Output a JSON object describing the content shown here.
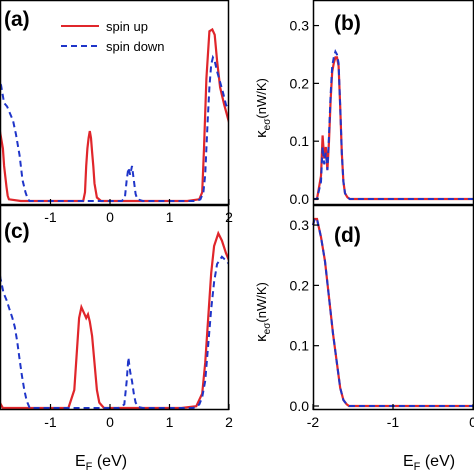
{
  "colors": {
    "spin_up": "#e0262b",
    "spin_down": "#1f35c9",
    "axis": "#000000"
  },
  "legend": {
    "spin_up": "spin up",
    "spin_down": "spin down"
  },
  "x_axis_label": {
    "main": "E",
    "sub": "F",
    "unit": " (eV)"
  },
  "y_axis_label": {
    "main": "κ",
    "sub": "eσ",
    "unit": "(nW/K)"
  },
  "chart_data": [
    {
      "panel": "(a)",
      "type": "line",
      "xlim": [
        -2,
        2
      ],
      "ylim": [
        0,
        1
      ],
      "xticks": [
        -1,
        0,
        1,
        2
      ],
      "yticks": [],
      "series": [
        {
          "name": "spin up",
          "style": "solid",
          "x": [
            -2.0,
            -1.95,
            -1.9,
            -1.85,
            -1.8,
            -1.78,
            -1.74,
            -1.72,
            -1.7,
            -1.5,
            -0.6,
            -0.45,
            -0.42,
            -0.4,
            -0.38,
            -0.36,
            -0.34,
            -0.32,
            -0.3,
            -0.28,
            -0.26,
            -0.22,
            -0.15,
            0.5,
            1.3,
            1.5,
            1.55,
            1.58,
            1.62,
            1.67,
            1.72,
            1.76,
            1.8,
            1.85,
            1.92,
            2.0
          ],
          "y": [
            0.48,
            0.46,
            0.45,
            0.4,
            0.3,
            0.2,
            0.08,
            0.03,
            0.01,
            0.0,
            0.0,
            0.0,
            0.05,
            0.2,
            0.3,
            0.36,
            0.4,
            0.36,
            0.28,
            0.2,
            0.1,
            0.02,
            0.0,
            0.0,
            0.0,
            0.01,
            0.05,
            0.3,
            0.7,
            0.97,
            0.98,
            0.95,
            0.8,
            0.65,
            0.55,
            0.45
          ]
        },
        {
          "name": "spin down",
          "style": "dashed",
          "x": [
            -2.0,
            -1.97,
            -1.92,
            -1.88,
            -1.83,
            -1.78,
            -1.73,
            -1.68,
            -1.63,
            -1.58,
            -1.52,
            -1.47,
            -1.42,
            -1.38,
            -1.35,
            0.1,
            0.2,
            0.25,
            0.28,
            0.31,
            0.34,
            0.37,
            0.4,
            0.43,
            0.46,
            0.55,
            1.45,
            1.52,
            1.57,
            1.6,
            1.62,
            1.64,
            1.67,
            1.7,
            1.73,
            1.76,
            1.8,
            1.85,
            1.9,
            1.95,
            2.0
          ],
          "y": [
            0.55,
            0.58,
            0.68,
            0.72,
            0.66,
            0.56,
            0.54,
            0.5,
            0.46,
            0.38,
            0.26,
            0.12,
            0.05,
            0.01,
            0.0,
            0.0,
            0.0,
            0.02,
            0.12,
            0.19,
            0.15,
            0.2,
            0.12,
            0.04,
            0.01,
            0.0,
            0.0,
            0.01,
            0.05,
            0.15,
            0.3,
            0.45,
            0.65,
            0.78,
            0.82,
            0.8,
            0.74,
            0.68,
            0.62,
            0.55,
            0.52
          ]
        }
      ]
    },
    {
      "panel": "(b)",
      "type": "line",
      "xlim": [
        -2,
        1
      ],
      "ylim": [
        0,
        0.32
      ],
      "xticks": [],
      "yticks": [
        0.0,
        0.1,
        0.2,
        0.3
      ],
      "series": [
        {
          "name": "spin up",
          "style": "solid",
          "x": [
            -2.0,
            -1.95,
            -1.9,
            -1.88,
            -1.86,
            -1.84,
            -1.82,
            -1.8,
            -1.78,
            -1.76,
            -1.74,
            -1.72,
            -1.7,
            -1.68,
            -1.66,
            -1.64,
            -1.62,
            -1.6,
            -1.57,
            -1.54,
            -1.5,
            -1.45,
            1.0
          ],
          "y": [
            0.0,
            0.0,
            0.04,
            0.11,
            0.07,
            0.09,
            0.05,
            0.1,
            0.17,
            0.22,
            0.235,
            0.245,
            0.245,
            0.23,
            0.16,
            0.08,
            0.03,
            0.01,
            0.003,
            0.0,
            0.0,
            0.0,
            0.0
          ]
        },
        {
          "name": "spin down",
          "style": "dashed",
          "x": [
            -2.0,
            -1.95,
            -1.9,
            -1.88,
            -1.86,
            -1.84,
            -1.82,
            -1.8,
            -1.78,
            -1.76,
            -1.74,
            -1.72,
            -1.7,
            -1.68,
            -1.66,
            -1.64,
            -1.62,
            -1.6,
            -1.57,
            -1.54,
            -1.5,
            -1.45,
            1.0
          ],
          "y": [
            0.0,
            0.0,
            0.03,
            0.09,
            0.06,
            0.08,
            0.05,
            0.11,
            0.18,
            0.23,
            0.245,
            0.255,
            0.25,
            0.235,
            0.16,
            0.08,
            0.03,
            0.01,
            0.003,
            0.0,
            0.0,
            0.0,
            0.0
          ]
        }
      ]
    },
    {
      "panel": "(c)",
      "type": "line",
      "xlim": [
        -2,
        2
      ],
      "ylim": [
        0,
        1
      ],
      "xticks": [
        -1,
        0,
        1,
        2
      ],
      "yticks": [],
      "series": [
        {
          "name": "spin up",
          "style": "solid",
          "x": [
            -2.0,
            -1.95,
            -1.9,
            -1.88,
            -1.85,
            -1.8,
            -1.5,
            -0.7,
            -0.6,
            -0.56,
            -0.52,
            -0.48,
            -0.44,
            -0.4,
            -0.37,
            -0.34,
            -0.3,
            -0.26,
            -0.22,
            -0.18,
            -0.1,
            1.2,
            1.45,
            1.55,
            1.6,
            1.65,
            1.7,
            1.75,
            1.82,
            1.88,
            1.95,
            2.0
          ],
          "y": [
            0.44,
            0.42,
            0.3,
            0.15,
            0.03,
            0.0,
            0.0,
            0.0,
            0.1,
            0.3,
            0.5,
            0.56,
            0.53,
            0.5,
            0.52,
            0.48,
            0.4,
            0.25,
            0.1,
            0.03,
            0.0,
            0.0,
            0.01,
            0.08,
            0.25,
            0.5,
            0.75,
            0.9,
            0.97,
            0.93,
            0.86,
            0.82
          ]
        },
        {
          "name": "spin down",
          "style": "dashed",
          "x": [
            -2.0,
            -1.96,
            -1.92,
            -1.88,
            -1.84,
            -1.79,
            -1.74,
            -1.69,
            -1.64,
            -1.6,
            -1.56,
            -1.52,
            -1.48,
            -1.44,
            -1.4,
            -1.35,
            0.15,
            0.24,
            0.28,
            0.31,
            0.34,
            0.37,
            0.4,
            0.43,
            0.48,
            0.55,
            1.4,
            1.5,
            1.55,
            1.6,
            1.65,
            1.7,
            1.75,
            1.8,
            1.88,
            1.95,
            2.0
          ],
          "y": [
            0.95,
            0.9,
            0.82,
            0.8,
            0.72,
            0.64,
            0.6,
            0.55,
            0.5,
            0.45,
            0.37,
            0.27,
            0.18,
            0.1,
            0.04,
            0.0,
            0.0,
            0.02,
            0.15,
            0.28,
            0.2,
            0.15,
            0.08,
            0.03,
            0.005,
            0.0,
            0.0,
            0.02,
            0.06,
            0.15,
            0.35,
            0.55,
            0.7,
            0.8,
            0.84,
            0.82,
            0.8
          ]
        }
      ]
    },
    {
      "panel": "(d)",
      "type": "line",
      "xlim": [
        -2,
        1
      ],
      "ylim": [
        0,
        0.32
      ],
      "xticks": [
        -2,
        -1,
        0
      ],
      "yticks": [
        0.0,
        0.1,
        0.2,
        0.3
      ],
      "series": [
        {
          "name": "spin up",
          "style": "solid",
          "x": [
            -2.0,
            -1.98,
            -1.95,
            -1.9,
            -1.85,
            -1.8,
            -1.75,
            -1.7,
            -1.66,
            -1.62,
            -1.58,
            -1.55,
            -1.52,
            1.0
          ],
          "y": [
            0.3,
            0.31,
            0.31,
            0.28,
            0.24,
            0.18,
            0.12,
            0.07,
            0.03,
            0.01,
            0.003,
            0.0,
            0.0,
            0.0
          ]
        },
        {
          "name": "spin down",
          "style": "dashed",
          "x": [
            -2.0,
            -1.98,
            -1.95,
            -1.9,
            -1.85,
            -1.8,
            -1.75,
            -1.7,
            -1.66,
            -1.62,
            -1.58,
            -1.55,
            -1.52,
            1.0
          ],
          "y": [
            0.3,
            0.31,
            0.31,
            0.28,
            0.24,
            0.18,
            0.12,
            0.07,
            0.03,
            0.01,
            0.003,
            0.0,
            0.0,
            0.0
          ]
        }
      ]
    }
  ]
}
